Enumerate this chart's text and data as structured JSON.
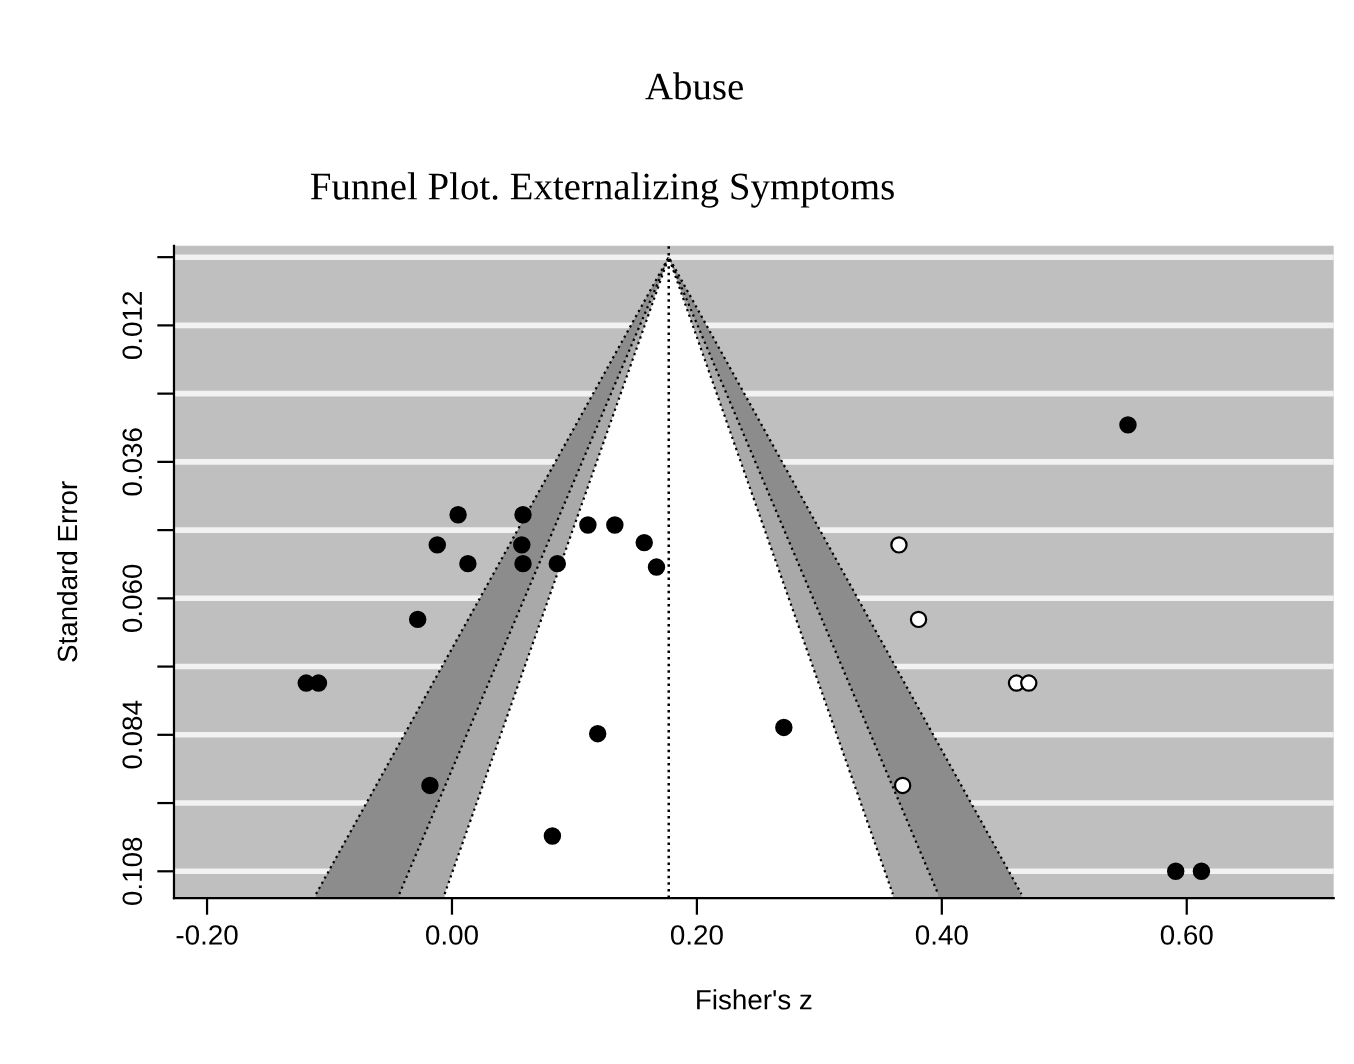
{
  "chart_data": {
    "type": "scatter",
    "title": "Abuse",
    "subtitle": "Funnel Plot. Externalizing Symptoms",
    "xlabel": "Fisher's z",
    "ylabel": "Standard Error",
    "xlim": [
      -0.227,
      0.72
    ],
    "ylim": [
      0.1127,
      -0.002
    ],
    "xticks": [
      {
        "value": -0.2,
        "label": "-0.20"
      },
      {
        "value": 0,
        "label": "0.00"
      },
      {
        "value": 0.2,
        "label": "0.20"
      },
      {
        "value": 0.4,
        "label": "0.40"
      },
      {
        "value": 0.6,
        "label": "0.60"
      }
    ],
    "yticks": [
      {
        "value": 0,
        "label": null
      },
      {
        "value": 0.012,
        "label": "0.012"
      },
      {
        "value": 0.024,
        "label": null
      },
      {
        "value": 0.036,
        "label": "0.036"
      },
      {
        "value": 0.048,
        "label": null
      },
      {
        "value": 0.06,
        "label": "0.060"
      },
      {
        "value": 0.072,
        "label": null
      },
      {
        "value": 0.084,
        "label": "0.084"
      },
      {
        "value": 0.096,
        "label": null
      },
      {
        "value": 0.108,
        "label": "0.108"
      }
    ],
    "grid": "y",
    "ref_lines": [
      {
        "axis": "x",
        "value": 0.177,
        "color": "#000000",
        "line_style": "dotted"
      }
    ],
    "series": [
      {
        "type": "area",
        "color": "#8c8c8c",
        "line_style": "dotted",
        "x": [
          -0.111,
          0.177,
          0.465
        ],
        "values": [
          0.112,
          0,
          0.112
        ]
      },
      {
        "type": "area",
        "color": "#a9a9a9",
        "line_style": "dotted",
        "x": [
          -0.043,
          0.177,
          0.397
        ],
        "values": [
          0.112,
          0,
          0.112
        ]
      },
      {
        "type": "area",
        "color": "#ffffff",
        "line_style": "dotted",
        "x": [
          -0.006,
          0.177,
          0.36
        ],
        "values": [
          0.112,
          0,
          0.112
        ]
      },
      {
        "marker": "circle",
        "color": "#000000",
        "x": [
          0.005,
          0.058,
          0.111,
          0.133,
          -0.012,
          0.057,
          0.157,
          0.013,
          0.058,
          0.086,
          0.167,
          -0.028,
          -0.119,
          -0.109,
          0.119,
          -0.018,
          0.082,
          0.552,
          0.271,
          0.591,
          0.612
        ],
        "values": [
          0.0453,
          0.0453,
          0.0471,
          0.0471,
          0.0506,
          0.0506,
          0.0502,
          0.0539,
          0.0539,
          0.0539,
          0.0545,
          0.0637,
          0.0749,
          0.0749,
          0.0838,
          0.0929,
          0.1018,
          0.0295,
          0.0827,
          0.108,
          0.108
        ]
      },
      {
        "marker": "circle",
        "color": "#ffffff",
        "x": [
          0.365,
          0.381,
          0.461,
          0.471,
          0.368
        ],
        "values": [
          0.0506,
          0.0637,
          0.0749,
          0.0749,
          0.0929
        ]
      }
    ]
  }
}
